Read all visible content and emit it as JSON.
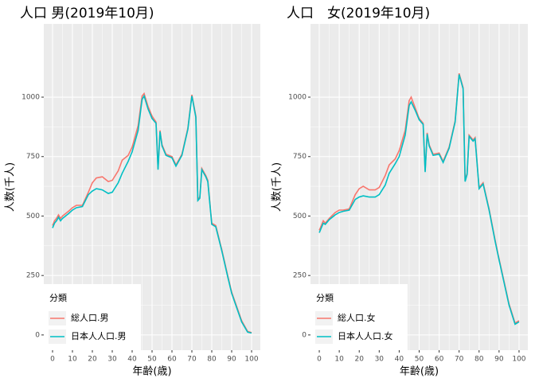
{
  "chart_data": [
    {
      "type": "line",
      "title": "人口 男(2019年10月)",
      "xlabel": "年齢(歳)",
      "ylabel": "人数(千人)",
      "legend_title": "分類",
      "legend": "bottom-left",
      "grid": true,
      "x": [
        0,
        1,
        2,
        3,
        4,
        5,
        8,
        10,
        12,
        15,
        18,
        20,
        22,
        25,
        28,
        30,
        33,
        35,
        38,
        40,
        43,
        45,
        46,
        48,
        50,
        52,
        53,
        54,
        55,
        57,
        60,
        62,
        65,
        68,
        70,
        72,
        73,
        74,
        75,
        77,
        78,
        80,
        82,
        85,
        88,
        90,
        95,
        98,
        100
      ],
      "series": [
        {
          "name": "総人口.男",
          "color": "#F8766D",
          "values": [
            460,
            480,
            490,
            505,
            490,
            500,
            520,
            535,
            545,
            545,
            600,
            640,
            660,
            665,
            645,
            650,
            690,
            735,
            755,
            790,
            880,
            1005,
            1015,
            960,
            920,
            895,
            700,
            860,
            800,
            760,
            750,
            715,
            760,
            870,
            1010,
            920,
            570,
            580,
            700,
            670,
            650,
            470,
            460,
            360,
            250,
            180,
            60,
            15,
            10
          ]
        },
        {
          "name": "日本人人口.男",
          "color": "#00BFC4",
          "values": [
            450,
            470,
            480,
            495,
            480,
            490,
            510,
            525,
            535,
            540,
            590,
            605,
            615,
            610,
            595,
            600,
            640,
            680,
            730,
            770,
            860,
            990,
            1005,
            950,
            910,
            890,
            695,
            855,
            795,
            755,
            745,
            710,
            755,
            865,
            1005,
            915,
            565,
            575,
            695,
            665,
            645,
            465,
            455,
            355,
            245,
            175,
            55,
            12,
            8
          ]
        }
      ],
      "xlim": [
        -4.4,
        104.4
      ],
      "ylim": [
        -64,
        1308
      ],
      "xticks": [
        0,
        10,
        20,
        30,
        40,
        50,
        60,
        70,
        80,
        90,
        100
      ],
      "yticks": [
        0,
        250,
        500,
        750,
        1000
      ]
    },
    {
      "type": "line",
      "title": "人口　女(2019年10月)",
      "xlabel": "年齢(歳)",
      "ylabel": "人数(千人)",
      "legend_title": "分類",
      "legend": "bottom-left",
      "grid": true,
      "x": [
        0,
        1,
        2,
        3,
        4,
        5,
        8,
        10,
        12,
        15,
        18,
        20,
        22,
        25,
        28,
        30,
        33,
        35,
        38,
        40,
        43,
        45,
        46,
        48,
        50,
        52,
        53,
        54,
        55,
        57,
        60,
        62,
        65,
        68,
        70,
        72,
        73,
        74,
        75,
        77,
        78,
        80,
        82,
        85,
        88,
        90,
        95,
        98,
        100
      ],
      "series": [
        {
          "name": "総人口.女",
          "color": "#F8766D",
          "values": [
            440,
            460,
            480,
            470,
            480,
            490,
            515,
            525,
            525,
            530,
            590,
            615,
            625,
            610,
            610,
            620,
            670,
            715,
            740,
            775,
            860,
            985,
            1000,
            955,
            910,
            890,
            690,
            850,
            800,
            760,
            765,
            730,
            790,
            900,
            1100,
            1040,
            650,
            680,
            840,
            820,
            830,
            620,
            640,
            530,
            400,
            320,
            130,
            50,
            60
          ]
        },
        {
          "name": "日本人人口.女",
          "color": "#00BFC4",
          "values": [
            430,
            450,
            470,
            465,
            475,
            485,
            505,
            515,
            520,
            525,
            570,
            580,
            585,
            580,
            580,
            590,
            630,
            680,
            720,
            750,
            840,
            965,
            980,
            945,
            905,
            885,
            685,
            845,
            795,
            755,
            760,
            725,
            785,
            895,
            1095,
            1035,
            645,
            675,
            835,
            815,
            825,
            615,
            635,
            525,
            395,
            315,
            125,
            45,
            55
          ]
        }
      ],
      "xlim": [
        -4.4,
        104.4
      ],
      "ylim": [
        -64,
        1308
      ],
      "xticks": [
        0,
        10,
        20,
        30,
        40,
        50,
        60,
        70,
        80,
        90,
        100
      ],
      "yticks": [
        0,
        250,
        500,
        750,
        1000
      ]
    }
  ]
}
